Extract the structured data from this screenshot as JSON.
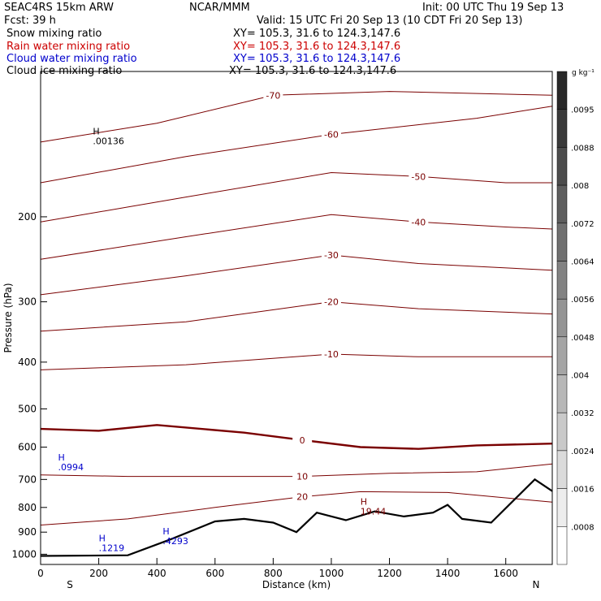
{
  "header": {
    "model": "SEAC4RS 15km ARW",
    "center": "NCAR/MMM",
    "init": "Init: 00 UTC Thu 19 Sep 13",
    "fcst": "Fcst:   39 h",
    "valid": "Valid: 15 UTC Fri 20 Sep 13 (10 CDT Fri 20 Sep 13)"
  },
  "legend": [
    {
      "name": "Snow mixing ratio",
      "xy": "XY= 105.3, 31.6 to 124.3,147.6",
      "color": "#000000"
    },
    {
      "name": "Rain water mixing ratio",
      "xy": "XY= 105.3, 31.6 to 124.3,147.6",
      "color": "#cc0000"
    },
    {
      "name": "Cloud water mixing ratio",
      "xy": "XY= 105.3, 31.6 to 124.3,147.6",
      "color": "#0000cc"
    },
    {
      "name": "Cloud ice mixing ratio",
      "xy": "XY= 105.3, 31.6 to 124.3,147.6",
      "color": "#000000"
    }
  ],
  "colorbar": {
    "units": "g kg⁻¹",
    "labels": [
      ".0095",
      ".0088",
      ".008",
      ".0072",
      ".0064",
      ".0056",
      ".0048",
      ".004",
      ".0032",
      ".0024",
      ".0016",
      ".0008"
    ]
  },
  "chart_data": {
    "type": "contour",
    "xlabel": "Distance (km)",
    "ylabel": "Pressure (hPa)",
    "xlim": [
      0,
      1760
    ],
    "ylim": [
      1050,
      100
    ],
    "y_scale": "log-pressure",
    "xticks": [
      0,
      200,
      400,
      600,
      800,
      1000,
      1200,
      1400,
      1600
    ],
    "yticks": [
      200,
      300,
      400,
      500,
      600,
      700,
      800,
      900,
      1000
    ],
    "endpoints": {
      "left": "S",
      "right": "N"
    },
    "temperature_contours": [
      {
        "label": "-70",
        "points": [
          [
            0,
            140
          ],
          [
            400,
            128
          ],
          [
            800,
            112
          ],
          [
            1200,
            110
          ],
          [
            1760,
            112
          ]
        ]
      },
      {
        "label": "-60",
        "points": [
          [
            0,
            170
          ],
          [
            500,
            150
          ],
          [
            1000,
            135
          ],
          [
            1500,
            125
          ],
          [
            1760,
            118
          ]
        ]
      },
      {
        "label": "-50",
        "points": [
          [
            0,
            205
          ],
          [
            500,
            182
          ],
          [
            1000,
            162
          ],
          [
            1300,
            165
          ],
          [
            1600,
            170
          ],
          [
            1760,
            170
          ]
        ]
      },
      {
        "label": "-40",
        "points": [
          [
            0,
            245
          ],
          [
            500,
            220
          ],
          [
            1000,
            198
          ],
          [
            1300,
            205
          ],
          [
            1600,
            210
          ],
          [
            1760,
            212
          ]
        ]
      },
      {
        "label": "-30",
        "points": [
          [
            0,
            290
          ],
          [
            500,
            265
          ],
          [
            1000,
            240
          ],
          [
            1300,
            250
          ],
          [
            1760,
            258
          ]
        ]
      },
      {
        "label": "-20",
        "points": [
          [
            0,
            345
          ],
          [
            500,
            330
          ],
          [
            1000,
            300
          ],
          [
            1300,
            310
          ],
          [
            1760,
            318
          ]
        ]
      },
      {
        "label": "-10",
        "points": [
          [
            0,
            415
          ],
          [
            500,
            405
          ],
          [
            1000,
            385
          ],
          [
            1300,
            390
          ],
          [
            1760,
            390
          ]
        ]
      },
      {
        "label": "0",
        "points": [
          [
            0,
            550
          ],
          [
            200,
            555
          ],
          [
            400,
            540
          ],
          [
            700,
            560
          ],
          [
            900,
            580
          ],
          [
            1100,
            600
          ],
          [
            1300,
            605
          ],
          [
            1500,
            595
          ],
          [
            1760,
            590
          ]
        ]
      },
      {
        "label": "10",
        "points": [
          [
            0,
            685
          ],
          [
            300,
            690
          ],
          [
            600,
            690
          ],
          [
            900,
            690
          ],
          [
            1200,
            680
          ],
          [
            1500,
            675
          ],
          [
            1760,
            650
          ]
        ]
      },
      {
        "label": "20",
        "points": [
          [
            0,
            870
          ],
          [
            300,
            845
          ],
          [
            600,
            800
          ],
          [
            900,
            760
          ],
          [
            1100,
            742
          ],
          [
            1400,
            745
          ],
          [
            1760,
            780
          ]
        ]
      }
    ],
    "terrain": {
      "description": "black terrain surface line",
      "points": [
        [
          0,
          1008
        ],
        [
          300,
          1005
        ],
        [
          450,
          930
        ],
        [
          600,
          855
        ],
        [
          700,
          845
        ],
        [
          800,
          860
        ],
        [
          880,
          900
        ],
        [
          950,
          820
        ],
        [
          1050,
          850
        ],
        [
          1150,
          815
        ],
        [
          1250,
          835
        ],
        [
          1350,
          820
        ],
        [
          1400,
          790
        ],
        [
          1450,
          845
        ],
        [
          1550,
          860
        ],
        [
          1700,
          700
        ],
        [
          1760,
          740
        ]
      ]
    },
    "annotations": [
      {
        "label": "H",
        "value": ".00136",
        "x": 180,
        "p": 135,
        "color": "#000000"
      },
      {
        "label": "H",
        "value": ".0994",
        "x": 60,
        "p": 640,
        "color": "#0000cc"
      },
      {
        "label": "H",
        "value": "19.44",
        "x": 1100,
        "p": 790,
        "color": "#7a0000"
      },
      {
        "label": "H",
        "value": ".1219",
        "x": 200,
        "p": 940,
        "color": "#0000cc"
      },
      {
        "label": "H",
        "value": ".4293",
        "x": 420,
        "p": 910,
        "color": "#0000cc"
      }
    ]
  }
}
